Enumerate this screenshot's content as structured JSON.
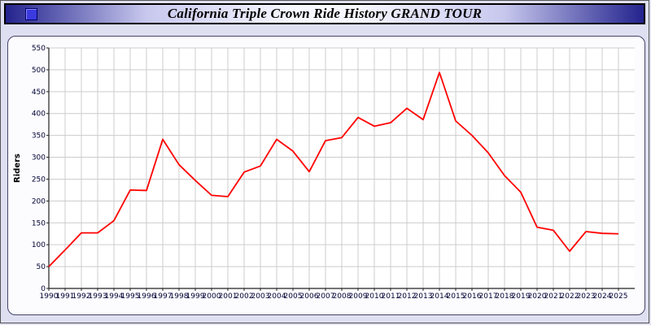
{
  "header": {
    "title": "California Triple Crown Ride History GRAND TOUR"
  },
  "chart_data": {
    "type": "line",
    "title": "California Triple Crown Ride History GRAND TOUR",
    "xlabel": "",
    "ylabel": "Riders",
    "ylim": [
      0,
      550
    ],
    "ytick_step": 50,
    "grid": true,
    "legend": "none",
    "line_color": "#ff0000",
    "plot_background": "#ffffff",
    "grid_color": "#cccccc",
    "categories": [
      1990,
      1991,
      1992,
      1993,
      1994,
      1995,
      1996,
      1997,
      1998,
      1999,
      2000,
      2001,
      2002,
      2003,
      2004,
      2005,
      2006,
      2007,
      2008,
      2009,
      2010,
      2011,
      2012,
      2013,
      2014,
      2015,
      2016,
      2017,
      2018,
      2019,
      2020,
      2021,
      2022,
      2023,
      2024,
      2025
    ],
    "series": [
      {
        "name": "Riders",
        "values": [
          50,
          88,
          127,
          127,
          155,
          225,
          224,
          341,
          283,
          247,
          213,
          210,
          266,
          280,
          341,
          314,
          267,
          338,
          345,
          391,
          371,
          379,
          412,
          386,
          494,
          383,
          350,
          310,
          258,
          220,
          140,
          133,
          85,
          130,
          126,
          125
        ]
      }
    ]
  },
  "colors": {
    "page_background": "#dfdff2",
    "titlebar_edge": "#23238e",
    "panel_border": "#444466",
    "line": "#ff0000",
    "tick_label": "#000033"
  }
}
